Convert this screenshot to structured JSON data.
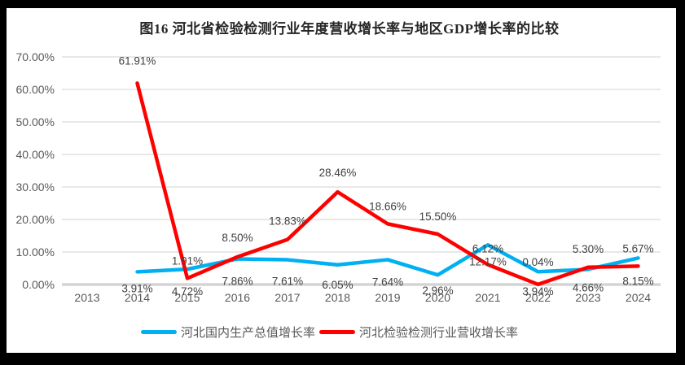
{
  "chart": {
    "title": "图16 河北省检验检测行业年度营收增长率与地区GDP增长率的比较"
  },
  "chart_data": {
    "type": "line",
    "title": "图16 河北省检验检测行业年度营收增长率与地区GDP增长率的比较",
    "categories": [
      "2013",
      "2014",
      "2015",
      "2016",
      "2017",
      "2018",
      "2019",
      "2020",
      "2021",
      "2022",
      "2023",
      "2024"
    ],
    "series": [
      {
        "name": "河北国内生产总值增长率",
        "color": "#00B0F0",
        "values": [
          null,
          3.91,
          4.72,
          7.86,
          7.61,
          6.05,
          7.64,
          2.96,
          12.17,
          3.94,
          4.66,
          8.15
        ],
        "label_position": "below",
        "label_dy": [
          0,
          2,
          9,
          9,
          8,
          6,
          9,
          1,
          2,
          6,
          4,
          10
        ]
      },
      {
        "name": "河北检验检测行业营收增长率",
        "color": "#FF0000",
        "values": [
          null,
          61.91,
          1.91,
          8.5,
          13.83,
          28.46,
          18.66,
          15.5,
          6.12,
          0.04,
          5.3,
          5.67
        ],
        "label_position": "above",
        "label_dy": [
          0,
          -8,
          -2,
          -4,
          -3,
          -4,
          -2,
          -2,
          0,
          -8,
          -3,
          -2
        ]
      }
    ],
    "y_axis": {
      "ticks": [
        "0.00%",
        "10.00%",
        "20.00%",
        "30.00%",
        "40.00%",
        "50.00%",
        "60.00%",
        "70.00%"
      ],
      "min": 0,
      "max": 70,
      "step": 10,
      "format": "percent"
    },
    "x_axis_label": "",
    "grid": true,
    "legend_position": "bottom"
  }
}
